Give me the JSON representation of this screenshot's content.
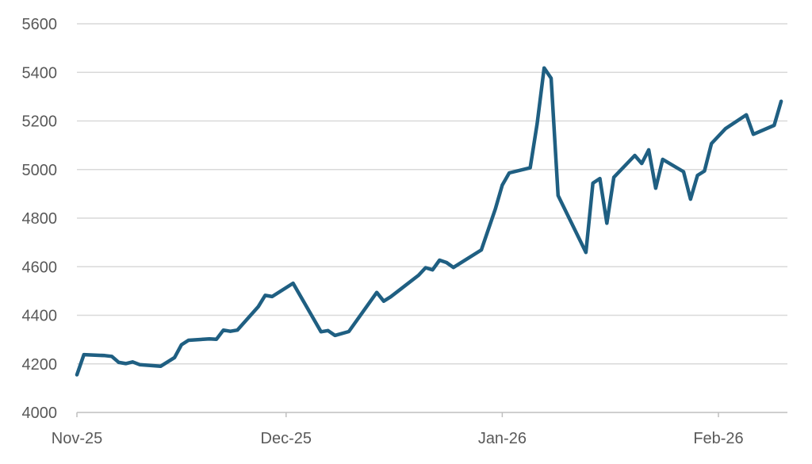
{
  "chart_data": {
    "type": "line",
    "title": "",
    "xlabel": "",
    "ylabel": "",
    "ylim": [
      4000,
      5600
    ],
    "yticks": [
      4000,
      4200,
      4400,
      4600,
      4800,
      5000,
      5200,
      5400,
      5600
    ],
    "x_tick_labels": [
      {
        "date": "2025-11-01",
        "label": "Nov-25"
      },
      {
        "date": "2025-12-01",
        "label": "Dec-25"
      },
      {
        "date": "2026-01-01",
        "label": "Jan-26"
      },
      {
        "date": "2026-02-01",
        "label": "Feb-26"
      }
    ],
    "xlim": [
      "2025-11-01",
      "2026-02-10"
    ],
    "grid": true,
    "legend": "none",
    "series": [
      {
        "color": "#1f5f82",
        "points": [
          [
            "2025-11-01",
            4155
          ],
          [
            "2025-11-02",
            4238
          ],
          [
            "2025-11-05",
            4234
          ],
          [
            "2025-11-06",
            4231
          ],
          [
            "2025-11-07",
            4206
          ],
          [
            "2025-11-08",
            4201
          ],
          [
            "2025-11-09",
            4208
          ],
          [
            "2025-11-10",
            4197
          ],
          [
            "2025-11-13",
            4190
          ],
          [
            "2025-11-15",
            4226
          ],
          [
            "2025-11-16",
            4279
          ],
          [
            "2025-11-17",
            4297
          ],
          [
            "2025-11-20",
            4303
          ],
          [
            "2025-11-21",
            4301
          ],
          [
            "2025-11-22",
            4339
          ],
          [
            "2025-11-23",
            4334
          ],
          [
            "2025-11-24",
            4339
          ],
          [
            "2025-11-27",
            4435
          ],
          [
            "2025-11-28",
            4482
          ],
          [
            "2025-11-29",
            4477
          ],
          [
            "2025-12-02",
            4532
          ],
          [
            "2025-12-06",
            4332
          ],
          [
            "2025-12-07",
            4337
          ],
          [
            "2025-12-08",
            4317
          ],
          [
            "2025-12-10",
            4333
          ],
          [
            "2025-12-14",
            4494
          ],
          [
            "2025-12-15",
            4458
          ],
          [
            "2025-12-16",
            4476
          ],
          [
            "2025-12-20",
            4565
          ],
          [
            "2025-12-21",
            4596
          ],
          [
            "2025-12-22",
            4587
          ],
          [
            "2025-12-23",
            4627
          ],
          [
            "2025-12-24",
            4617
          ],
          [
            "2025-12-25",
            4597
          ],
          [
            "2025-12-29",
            4669
          ],
          [
            "2025-12-30",
            4753
          ],
          [
            "2025-12-31",
            4837
          ],
          [
            "2026-01-01",
            4936
          ],
          [
            "2026-01-02",
            4986
          ],
          [
            "2026-01-05",
            5007
          ],
          [
            "2026-01-06",
            5189
          ],
          [
            "2026-01-07",
            5418
          ],
          [
            "2026-01-08",
            5376
          ],
          [
            "2026-01-09",
            4893
          ],
          [
            "2026-01-13",
            4659
          ],
          [
            "2026-01-14",
            4944
          ],
          [
            "2026-01-15",
            4963
          ],
          [
            "2026-01-16",
            4779
          ],
          [
            "2026-01-17",
            4968
          ],
          [
            "2026-01-20",
            5058
          ],
          [
            "2026-01-21",
            5025
          ],
          [
            "2026-01-22",
            5081
          ],
          [
            "2026-01-23",
            4923
          ],
          [
            "2026-01-24",
            5042
          ],
          [
            "2026-01-27",
            4991
          ],
          [
            "2026-01-28",
            4878
          ],
          [
            "2026-01-29",
            4976
          ],
          [
            "2026-01-30",
            4994
          ],
          [
            "2026-01-31",
            5107
          ],
          [
            "2026-02-02",
            5168
          ],
          [
            "2026-02-05",
            5225
          ],
          [
            "2026-02-06",
            5145
          ],
          [
            "2026-02-09",
            5182
          ],
          [
            "2026-02-10",
            5281
          ]
        ]
      }
    ]
  }
}
